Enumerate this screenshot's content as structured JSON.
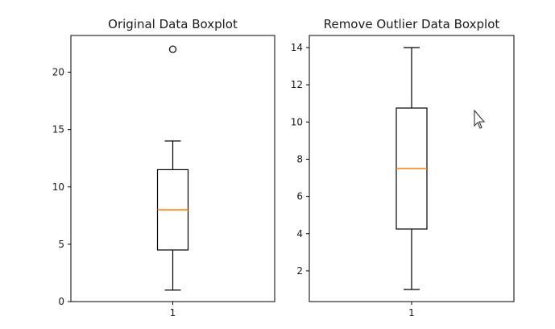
{
  "chart_data": [
    {
      "type": "boxplot",
      "title": "Original Data Boxplot",
      "xlabel": "",
      "ylabel": "",
      "categories": [
        "1"
      ],
      "ylim": [
        0,
        23.2
      ],
      "yticks": [
        0,
        5,
        10,
        15,
        20
      ],
      "box": {
        "min": 1,
        "q1": 4.5,
        "median": 8,
        "q3": 11.5,
        "max": 14,
        "outliers": [
          22
        ]
      },
      "median_color": "#ff7f0e",
      "grid": false
    },
    {
      "type": "boxplot",
      "title": "Remove Outlier Data Boxplot",
      "xlabel": "",
      "ylabel": "",
      "categories": [
        "1"
      ],
      "ylim": [
        0.35,
        14.65
      ],
      "yticks": [
        2,
        4,
        6,
        8,
        10,
        12,
        14
      ],
      "box": {
        "min": 1,
        "q1": 4.25,
        "median": 7.5,
        "q3": 10.75,
        "max": 14,
        "outliers": []
      },
      "median_color": "#ff7f0e",
      "grid": false
    }
  ],
  "cursor": {
    "icon": "arrow-cursor-icon"
  }
}
